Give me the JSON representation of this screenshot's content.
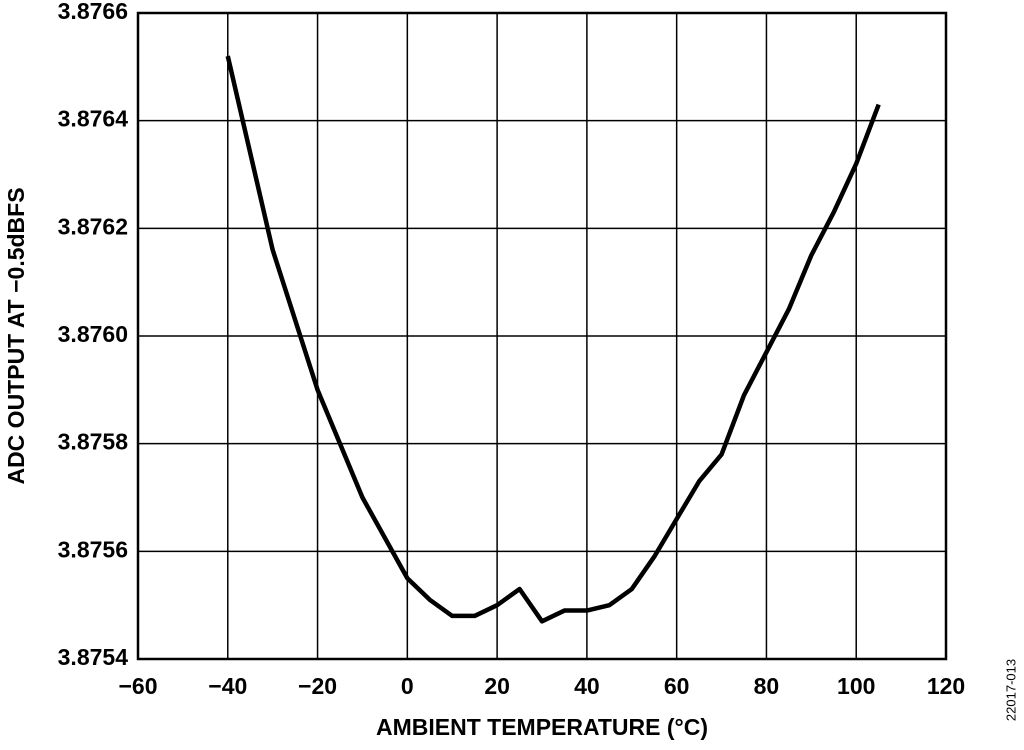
{
  "chart_data": {
    "type": "line",
    "x_label": "AMBIENT TEMPERATURE (°C)",
    "y_label": "ADC OUTPUT AT −0.5dBFS",
    "figure_id": "22017-013",
    "x": [
      -40,
      -30,
      -20,
      -10,
      0,
      5,
      10,
      15,
      20,
      25,
      30,
      35,
      40,
      45,
      50,
      55,
      60,
      65,
      70,
      75,
      80,
      85,
      90,
      95,
      100,
      105
    ],
    "series": [
      {
        "color": "#000000",
        "values": [
          3.87652,
          3.87616,
          3.8759,
          3.8757,
          3.87555,
          3.87551,
          3.87548,
          3.87548,
          3.8755,
          3.87553,
          3.87547,
          3.87549,
          3.87549,
          3.8755,
          3.87553,
          3.87559,
          3.87566,
          3.87573,
          3.87578,
          3.87589,
          3.87597,
          3.87605,
          3.87615,
          3.87623,
          3.87632,
          3.87643
        ]
      }
    ],
    "xlim": [
      -60,
      120
    ],
    "xticks": [
      {
        "value": -60,
        "label": "−60"
      },
      {
        "value": -40,
        "label": "−40"
      },
      {
        "value": -20,
        "label": "−20"
      },
      0,
      20,
      40,
      60,
      80,
      100,
      120
    ],
    "ylim": [
      3.8754,
      3.8766
    ],
    "yticks": [
      3.8754,
      3.8756,
      3.8758,
      {
        "value": 3.876,
        "label": "3.8760"
      },
      3.8762,
      3.8764,
      3.8766
    ],
    "grid": true
  }
}
